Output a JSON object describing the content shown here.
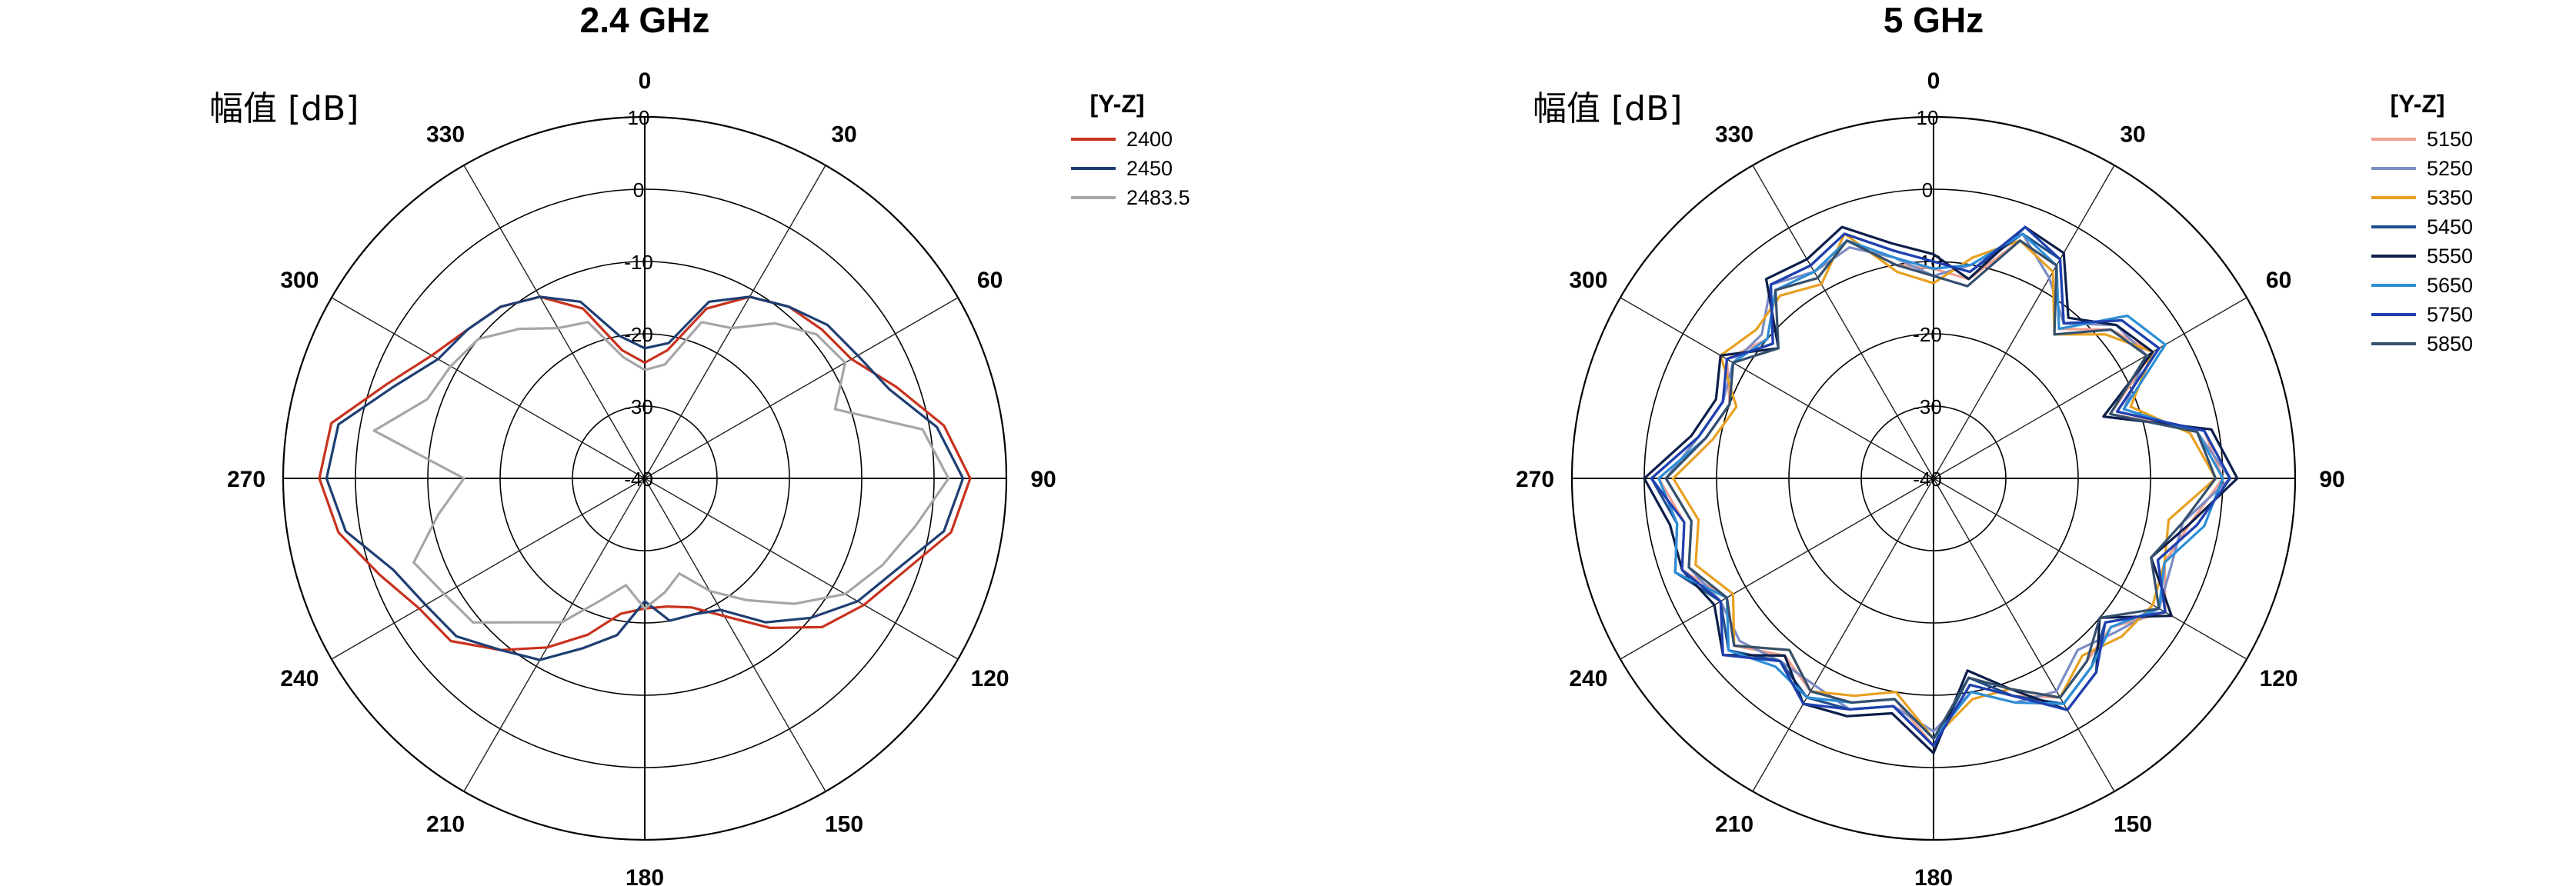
{
  "chart_data": [
    {
      "type": "polar-line",
      "title": "2.4 GHz",
      "ylabel": "幅值 [dB]",
      "radial_ticks": [
        "10",
        "0",
        "-10",
        "-20",
        "-30",
        "-40"
      ],
      "radial_range": [
        -40,
        10
      ],
      "angle_ticks": [
        "0",
        "30",
        "60",
        "90",
        "120",
        "150",
        "180",
        "210",
        "240",
        "270",
        "300",
        "330"
      ],
      "angle_zero": "top",
      "angle_direction": "clockwise",
      "grid": true,
      "legend": {
        "title": "[Y-Z]",
        "placement": "right"
      },
      "angles_deg": [
        0,
        10,
        20,
        30,
        40,
        50,
        60,
        70,
        80,
        90,
        100,
        110,
        120,
        130,
        140,
        150,
        160,
        170,
        180,
        190,
        200,
        210,
        220,
        230,
        240,
        250,
        260,
        270,
        280,
        290,
        300,
        310,
        320,
        330,
        340,
        350
      ],
      "series": [
        {
          "name": "2400",
          "color": "#c8321e",
          "values": [
            -24,
            -22,
            -15,
            -11,
            -9,
            -8,
            -7,
            -3,
            2,
            5,
            3,
            -2,
            -5,
            -8,
            -13,
            -18,
            -21,
            -22,
            -22,
            -21,
            -17,
            -13,
            -9,
            -5,
            -4,
            -1,
            3,
            5,
            4,
            -2,
            -6,
            -8,
            -9,
            -11,
            -15,
            -22
          ]
        },
        {
          "name": "2450",
          "color": "#1f3f73",
          "values": [
            -22,
            -21,
            -14,
            -11,
            -9,
            -7,
            -6,
            -4,
            1,
            4,
            2,
            -3,
            -6,
            -10,
            -14,
            -19,
            -20,
            -20,
            -23,
            -18,
            -15,
            -11,
            -9,
            -6,
            -5,
            -3,
            2,
            4,
            3,
            -3,
            -7,
            -8,
            -9,
            -11,
            -14,
            -20
          ]
        },
        {
          "name": "2483.5",
          "color": "#a6a6a6",
          "values": [
            -25,
            -24,
            -17,
            -16,
            -12,
            -9,
            -8,
            -12,
            -1,
            2,
            -2,
            -5,
            -8,
            -13,
            -18,
            -22,
            -26,
            -24,
            -22,
            -25,
            -22,
            -17,
            -14,
            -9,
            -8,
            -6,
            -11,
            -15,
            -2,
            -8,
            -9,
            -10,
            -13,
            -16,
            -17,
            -23
          ]
        }
      ]
    },
    {
      "type": "polar-line",
      "title": "5 GHz",
      "ylabel": "幅值 [dB]",
      "radial_ticks": [
        "10",
        "0",
        "-10",
        "-20",
        "-30",
        "-40"
      ],
      "radial_range": [
        -40,
        10
      ],
      "angle_ticks": [
        "0",
        "30",
        "60",
        "90",
        "120",
        "150",
        "180",
        "210",
        "240",
        "270",
        "300",
        "330"
      ],
      "angle_zero": "top",
      "angle_direction": "clockwise",
      "grid": true,
      "legend": {
        "title": "[Y-Z]",
        "placement": "right"
      },
      "angles_deg": [
        0,
        10,
        20,
        30,
        40,
        50,
        60,
        70,
        80,
        90,
        100,
        110,
        120,
        130,
        140,
        150,
        160,
        170,
        180,
        190,
        200,
        210,
        220,
        230,
        240,
        250,
        260,
        270,
        280,
        290,
        300,
        310,
        320,
        330,
        340,
        350
      ],
      "series": [
        {
          "name": "5150",
          "color": "#f0a090",
          "values": [
            -11,
            -12,
            -5,
            -6,
            -13,
            -8,
            -5,
            -14,
            -2,
            0,
            -4,
            -6,
            -3,
            -8,
            -7,
            -5,
            -8,
            -11,
            -3,
            -9,
            -7,
            -6,
            -8,
            -4,
            -7,
            -3,
            -5,
            -2,
            -8,
            -10,
            -7,
            -10,
            -6,
            -8,
            -5,
            -10
          ]
        },
        {
          "name": "5250",
          "color": "#7c8cc4",
          "values": [
            -12,
            -10,
            -4,
            -8,
            -12,
            -7,
            -6,
            -12,
            -3,
            1,
            -5,
            -5,
            -4,
            -7,
            -9,
            -6,
            -7,
            -10,
            -5,
            -8,
            -6,
            -7,
            -7,
            -5,
            -6,
            -4,
            -6,
            -3,
            -7,
            -9,
            -8,
            -9,
            -5,
            -7,
            -6,
            -9
          ]
        },
        {
          "name": "5350",
          "color": "#e8a020",
          "values": [
            -13,
            -9,
            -5,
            -7,
            -14,
            -9,
            -5,
            -11,
            -4,
            -1,
            -7,
            -6,
            -5,
            -6,
            -8,
            -5,
            -9,
            -9,
            -4,
            -10,
            -8,
            -6,
            -9,
            -4,
            -8,
            -5,
            -7,
            -4,
            -9,
            -11,
            -6,
            -8,
            -7,
            -9,
            -4,
            -11
          ]
        },
        {
          "name": "5450",
          "color": "#1f4e8c",
          "values": [
            -10,
            -11,
            -4,
            -5,
            -12,
            -6,
            -4,
            -13,
            -2,
            1,
            -3,
            -7,
            -3,
            -9,
            -6,
            -4,
            -8,
            -12,
            -3,
            -8,
            -6,
            -5,
            -7,
            -3,
            -6,
            -2,
            -4,
            -1,
            -7,
            -9,
            -7,
            -11,
            -5,
            -6,
            -4,
            -8
          ]
        },
        {
          "name": "5550",
          "color": "#0d1e4a",
          "values": [
            -9,
            -12,
            -3,
            -4,
            -11,
            -7,
            -5,
            -15,
            -1,
            2,
            -4,
            -8,
            -2,
            -10,
            -5,
            -3,
            -9,
            -13,
            -2,
            -7,
            -5,
            -4,
            -8,
            -2,
            -5,
            -3,
            -3,
            0,
            -6,
            -8,
            -6,
            -12,
            -4,
            -5,
            -3,
            -7
          ]
        },
        {
          "name": "5650",
          "color": "#2c8ed6",
          "values": [
            -11,
            -10,
            -4,
            -6,
            -13,
            -5,
            -3,
            -12,
            -3,
            0,
            -2,
            -6,
            -4,
            -8,
            -6,
            -4,
            -7,
            -10,
            -4,
            -9,
            -7,
            -5,
            -6,
            -3,
            -7,
            -2,
            -4,
            -2,
            -8,
            -10,
            -8,
            -10,
            -6,
            -7,
            -5,
            -9
          ]
        },
        {
          "name": "5750",
          "color": "#1e40b0",
          "values": [
            -10,
            -11,
            -3,
            -5,
            -12,
            -6,
            -4,
            -13,
            -2,
            1,
            -3,
            -7,
            -3,
            -9,
            -5,
            -3,
            -8,
            -11,
            -3,
            -8,
            -6,
            -4,
            -7,
            -2,
            -6,
            -3,
            -5,
            -1,
            -7,
            -9,
            -7,
            -11,
            -5,
            -6,
            -4,
            -8
          ]
        },
        {
          "name": "5850",
          "color": "#34506e",
          "values": [
            -12,
            -13,
            -5,
            -6,
            -14,
            -8,
            -6,
            -14,
            -3,
            -1,
            -5,
            -8,
            -4,
            -10,
            -7,
            -5,
            -9,
            -12,
            -4,
            -9,
            -7,
            -6,
            -9,
            -4,
            -7,
            -4,
            -6,
            -3,
            -8,
            -10,
            -8,
            -12,
            -6,
            -8,
            -5,
            -10
          ]
        }
      ]
    }
  ]
}
